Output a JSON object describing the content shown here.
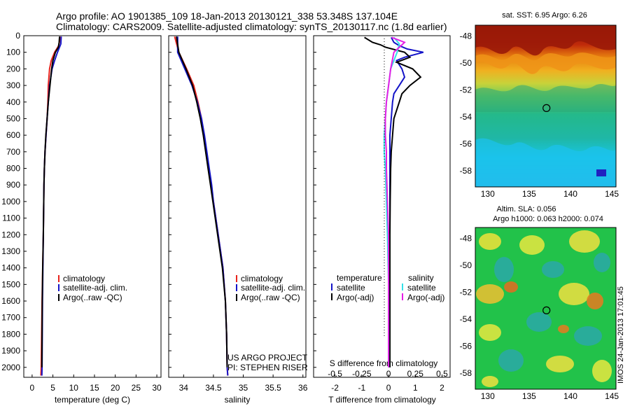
{
  "header": {
    "line1": "Argo profile: AO 1901385_109 18-Jan-2013 20130121_338 53.348S 137.104E",
    "line2": "Climatology: CARS2009. Satellite-adjusted climatology: synTS_20130117.nc (1.8d earlier)"
  },
  "colors": {
    "climatology": "#e8231c",
    "satellite": "#1414c8",
    "argo": "#000000",
    "sal_satellite": "#33e0e8",
    "sal_argo": "#e61ee6"
  },
  "chart_data": [
    {
      "type": "line",
      "name": "temperature",
      "xlabel": "temperature (deg C)",
      "xlim": [
        -2,
        31
      ],
      "ylim": [
        2060,
        0
      ],
      "xticks": [
        "0",
        "5",
        "10",
        "15",
        "20",
        "25",
        "30"
      ],
      "yticks": [
        "0",
        "100",
        "200",
        "300",
        "400",
        "500",
        "600",
        "700",
        "800",
        "900",
        "1000",
        "1100",
        "1200",
        "1300",
        "1400",
        "1500",
        "1600",
        "1700",
        "1800",
        "1900",
        "2000"
      ],
      "legend": [
        "climatology",
        "satellite-adj. clim.",
        "Argo(..raw -QC)"
      ],
      "series": [
        {
          "name": "climatology",
          "depth": [
            5,
            60,
            100,
            150,
            200,
            300,
            400,
            500,
            600,
            700,
            800,
            900,
            1000,
            1200,
            1400,
            1600,
            1800,
            2000,
            2050
          ],
          "values": [
            6.8,
            6.4,
            5.4,
            4.6,
            4.2,
            3.9,
            3.8,
            3.6,
            3.35,
            3.1,
            2.95,
            2.85,
            2.8,
            2.7,
            2.55,
            2.4,
            2.3,
            2.2,
            2.1
          ]
        },
        {
          "name": "satellite",
          "depth": [
            5,
            50,
            100,
            150,
            200,
            300,
            400,
            500,
            600,
            700,
            800,
            900,
            1000,
            1200,
            1400,
            1600,
            1800,
            2000,
            2050
          ],
          "values": [
            7.0,
            6.9,
            6.1,
            5.4,
            4.8,
            4.2,
            3.9,
            3.6,
            3.35,
            3.1,
            2.95,
            2.85,
            2.8,
            2.7,
            2.6,
            2.5,
            2.45,
            2.4,
            2.35
          ]
        },
        {
          "name": "argo",
          "depth": [
            5,
            40,
            70,
            100,
            150,
            200,
            300,
            400,
            500,
            600,
            700,
            800,
            900,
            1000,
            1200,
            1400,
            1600,
            1800,
            2000
          ],
          "values": [
            6.6,
            6.5,
            6.3,
            5.6,
            5.0,
            4.7,
            4.3,
            3.9,
            3.6,
            3.3,
            3.1,
            2.95,
            2.85,
            2.8,
            2.7,
            2.55,
            2.45,
            2.4,
            2.35
          ]
        }
      ]
    },
    {
      "type": "line",
      "name": "salinity",
      "xlabel": "salinity",
      "xlim": [
        33.75,
        36.05
      ],
      "ylim": [
        2060,
        0
      ],
      "xticks": [
        "34",
        "34.5",
        "35",
        "35.5",
        "36"
      ],
      "legend": [
        "climatology",
        "satellite-adj. clim.",
        "Argo(..raw -QC)"
      ],
      "credits": [
        "US ARGO PROJECT",
        "PI: STEPHEN RISER"
      ],
      "series": [
        {
          "name": "climatology",
          "depth": [
            5,
            100,
            200,
            300,
            400,
            500,
            600,
            700,
            800,
            900,
            1000,
            1200,
            1400,
            1600,
            1800,
            2000,
            2050
          ],
          "values": [
            33.85,
            33.92,
            34.05,
            34.17,
            34.24,
            34.3,
            34.34,
            34.38,
            34.42,
            34.46,
            34.5,
            34.58,
            34.66,
            34.7,
            34.72,
            34.73,
            34.74
          ]
        },
        {
          "name": "satellite",
          "depth": [
            5,
            100,
            200,
            300,
            400,
            500,
            600,
            700,
            800,
            900,
            1000,
            1200,
            1400,
            1600,
            1800,
            2000,
            2050
          ],
          "values": [
            33.9,
            33.9,
            34.02,
            34.14,
            34.23,
            34.3,
            34.35,
            34.39,
            34.43,
            34.47,
            34.5,
            34.58,
            34.66,
            34.7,
            34.72,
            34.73,
            34.74
          ]
        },
        {
          "name": "argo",
          "depth": [
            5,
            100,
            200,
            300,
            400,
            500,
            600,
            700,
            800,
            900,
            1000,
            1200,
            1400,
            1600,
            1800,
            2000
          ],
          "values": [
            33.88,
            33.92,
            34.04,
            34.15,
            34.22,
            34.28,
            34.33,
            34.37,
            34.41,
            34.45,
            34.49,
            34.57,
            34.65,
            34.7,
            34.72,
            34.73
          ]
        }
      ]
    },
    {
      "type": "line",
      "name": "difference",
      "xlabel": "T difference from climatology",
      "xlabel2": "S difference from climatology",
      "xlim": [
        -2.8,
        2.3
      ],
      "ylim": [
        2060,
        0
      ],
      "xticks": [
        "-2",
        "-1",
        "0",
        "1",
        "2"
      ],
      "xticks2": [
        "-0.5",
        "-0.25",
        "0",
        "0.25",
        "0.5"
      ],
      "legend_titles": [
        "temperature",
        "salinity"
      ],
      "legend": [
        "satellite",
        "Argo(-adj)",
        "satellite",
        "Argo(-adj)"
      ],
      "series": [
        {
          "name": "T satellite",
          "depth": [
            10,
            40,
            60,
            80,
            100,
            130,
            150,
            200,
            250,
            300,
            350,
            400,
            500,
            600,
            700,
            800,
            1000,
            1200,
            1500,
            1800,
            2000
          ],
          "values": [
            0.1,
            0.2,
            0.4,
            0.7,
            1.3,
            0.6,
            0.3,
            0.5,
            0.6,
            0.4,
            0.2,
            0.15,
            0.1,
            0.05,
            0.05,
            0.05,
            0.05,
            0.05,
            0.05,
            0.05,
            0.05
          ]
        },
        {
          "name": "T argo",
          "depth": [
            10,
            40,
            55,
            70,
            100,
            130,
            160,
            200,
            250,
            300,
            350,
            400,
            500,
            600,
            700,
            800,
            1000,
            1200,
            1500,
            1800,
            2000
          ],
          "values": [
            -0.9,
            -0.6,
            -0.3,
            -0.1,
            0.6,
            0.8,
            0.3,
            0.9,
            1.2,
            0.8,
            0.5,
            0.4,
            0.2,
            0.15,
            0.1,
            0.08,
            0.06,
            0.05,
            0.05,
            0.05,
            0.05
          ]
        },
        {
          "name": "S satellite",
          "depth": [
            10,
            50,
            100,
            200,
            300,
            400,
            500,
            600,
            700,
            800,
            1000,
            1200,
            1500,
            1800,
            2000
          ],
          "values": [
            0.05,
            0.1,
            0.08,
            0.02,
            0,
            -0.02,
            -0.03,
            -0.04,
            -0.04,
            -0.03,
            -0.02,
            -0.01,
            0,
            0,
            0
          ]
        },
        {
          "name": "S argo",
          "depth": [
            10,
            40,
            70,
            100,
            200,
            300,
            400,
            500,
            600,
            700,
            800,
            1000,
            1200,
            1500,
            1800,
            2000
          ],
          "values": [
            0.03,
            0.15,
            0.1,
            0.05,
            0.02,
            0,
            -0.02,
            -0.03,
            -0.03,
            -0.02,
            -0.02,
            -0.01,
            0,
            0,
            0,
            0
          ]
        }
      ]
    },
    {
      "type": "heatmap",
      "name": "sst_map",
      "title": "sat. SST: 6.95 Argo: 6.26",
      "xticks": [
        "130",
        "135",
        "140",
        "145"
      ],
      "yticks": [
        "-48",
        "-50",
        "-52",
        "-54",
        "-56",
        "-58"
      ],
      "xlim": [
        128.5,
        145.5
      ],
      "ylim": [
        -59.2,
        -47.2
      ],
      "marker": {
        "lon": 137.1,
        "lat": -53.35
      }
    },
    {
      "type": "heatmap",
      "name": "sla_map",
      "title_line1": "Altim. SLA: 0.056",
      "title_line2": "Argo h1000: 0.063 h2000: 0.074",
      "xticks": [
        "130",
        "135",
        "140",
        "145"
      ],
      "yticks": [
        "-48",
        "-50",
        "-52",
        "-54",
        "-56",
        "-58"
      ],
      "xlim": [
        128.5,
        145.5
      ],
      "ylim": [
        -59.2,
        -47.2
      ],
      "marker": {
        "lon": 137.1,
        "lat": -53.35
      },
      "side_label": "IMOS 24-Jan-2013 17:01:45"
    }
  ]
}
